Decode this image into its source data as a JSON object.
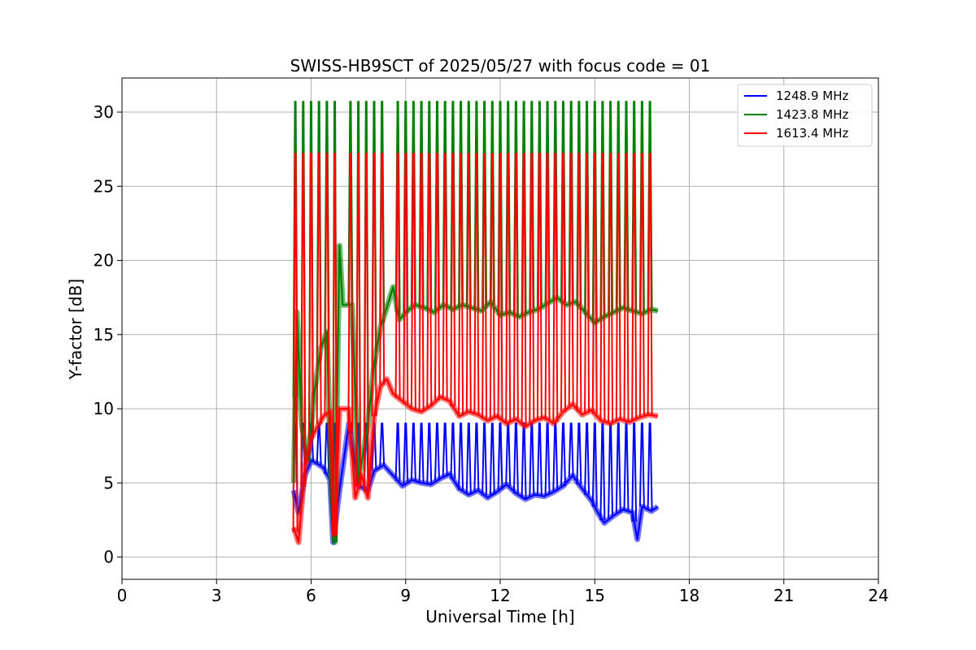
{
  "chart_data": {
    "type": "line",
    "title": "SWISS-HB9SCT of 2025/05/27 with focus code = 01",
    "xlabel": "Universal Time [h]",
    "ylabel": "Y-factor [dB]",
    "xlim": [
      0,
      24
    ],
    "ylim": [
      -1.5,
      32.3
    ],
    "xticks": [
      0,
      3,
      6,
      9,
      12,
      15,
      18,
      21,
      24
    ],
    "yticks": [
      0,
      5,
      10,
      15,
      20,
      25,
      30
    ],
    "grid": true,
    "legend_position": "top-right",
    "calibration_spike_times": [
      5.5,
      5.75,
      6.0,
      6.25,
      6.5,
      6.75,
      7.25,
      7.5,
      7.75,
      8.0,
      8.25,
      8.75,
      9.0,
      9.25,
      9.5,
      9.75,
      10.0,
      10.25,
      10.5,
      10.75,
      11.0,
      11.25,
      11.5,
      11.75,
      12.0,
      12.25,
      12.5,
      12.75,
      13.0,
      13.25,
      13.5,
      13.75,
      14.0,
      14.25,
      14.5,
      14.75,
      15.0,
      15.25,
      15.5,
      15.75,
      16.0,
      16.25,
      16.5,
      16.75
    ],
    "series": [
      {
        "name": "1248.9 MHz",
        "color": "#0000ff",
        "spike_peak": 9.0,
        "x": [
          5.45,
          5.6,
          5.8,
          6.0,
          6.2,
          6.4,
          6.6,
          6.7,
          6.9,
          7.2,
          7.5,
          7.8,
          8.0,
          8.3,
          8.6,
          8.9,
          9.2,
          9.5,
          9.8,
          10.1,
          10.4,
          10.7,
          11.0,
          11.3,
          11.6,
          11.9,
          12.2,
          12.5,
          12.8,
          13.1,
          13.4,
          13.7,
          14.0,
          14.3,
          14.6,
          14.9,
          15.1,
          15.3,
          15.6,
          15.9,
          16.2,
          16.35,
          16.5,
          16.8,
          17.0
        ],
        "y": [
          4.5,
          3.0,
          5.5,
          6.5,
          6.3,
          6.0,
          5.2,
          1.0,
          4.5,
          9.0,
          4.8,
          4.5,
          5.8,
          6.2,
          5.5,
          4.8,
          5.2,
          5.0,
          4.9,
          5.3,
          5.6,
          4.6,
          4.2,
          4.5,
          4.0,
          4.4,
          4.9,
          4.3,
          3.9,
          4.2,
          4.1,
          4.4,
          4.8,
          5.5,
          4.6,
          3.8,
          3.0,
          2.3,
          2.8,
          3.2,
          3.0,
          1.2,
          3.4,
          3.1,
          3.4
        ]
      },
      {
        "name": "1423.8 MHz",
        "color": "#008000",
        "spike_peak": 30.7,
        "x": [
          5.45,
          5.55,
          5.7,
          5.9,
          6.1,
          6.3,
          6.5,
          6.65,
          6.75,
          6.9,
          7.0,
          7.3,
          7.5,
          7.8,
          8.0,
          8.2,
          8.4,
          8.6,
          8.8,
          9.0,
          9.3,
          9.6,
          9.9,
          10.2,
          10.5,
          10.8,
          11.1,
          11.4,
          11.7,
          12.0,
          12.3,
          12.6,
          12.9,
          13.2,
          13.5,
          13.8,
          14.1,
          14.4,
          14.7,
          15.0,
          15.3,
          15.6,
          15.9,
          16.2,
          16.5,
          16.8,
          17.0
        ],
        "y": [
          5.0,
          16.5,
          9.0,
          6.5,
          11.0,
          14.0,
          15.2,
          4.0,
          1.0,
          21.0,
          17.0,
          17.0,
          5.0,
          9.0,
          13.0,
          15.5,
          16.8,
          18.2,
          16.0,
          16.5,
          17.0,
          16.8,
          16.5,
          17.0,
          16.7,
          17.0,
          16.8,
          16.6,
          17.2,
          16.3,
          16.5,
          16.2,
          16.5,
          16.7,
          17.1,
          17.5,
          17.0,
          17.2,
          16.5,
          15.8,
          16.2,
          16.5,
          16.8,
          16.6,
          16.4,
          16.7,
          16.6
        ]
      },
      {
        "name": "1613.4 MHz",
        "color": "#ff0000",
        "spike_peak": 27.2,
        "x": [
          5.45,
          5.6,
          5.8,
          6.0,
          6.2,
          6.4,
          6.6,
          6.75,
          6.9,
          7.2,
          7.4,
          7.6,
          7.8,
          8.0,
          8.2,
          8.4,
          8.6,
          8.9,
          9.2,
          9.5,
          9.8,
          10.1,
          10.4,
          10.7,
          11.0,
          11.3,
          11.6,
          11.9,
          12.2,
          12.5,
          12.8,
          13.1,
          13.4,
          13.7,
          14.0,
          14.3,
          14.6,
          14.9,
          15.2,
          15.5,
          15.8,
          16.1,
          16.4,
          16.7,
          17.0
        ],
        "y": [
          2.0,
          1.0,
          6.0,
          8.0,
          8.8,
          9.5,
          9.8,
          1.5,
          10.0,
          10.0,
          4.0,
          5.5,
          4.0,
          9.5,
          11.5,
          12.0,
          11.0,
          10.5,
          10.0,
          9.8,
          10.2,
          10.8,
          10.5,
          9.5,
          9.8,
          9.6,
          9.2,
          9.5,
          9.0,
          9.3,
          8.8,
          9.2,
          9.4,
          9.0,
          9.8,
          10.3,
          9.6,
          9.9,
          9.2,
          9.0,
          9.3,
          9.1,
          9.4,
          9.6,
          9.5
        ]
      }
    ]
  }
}
